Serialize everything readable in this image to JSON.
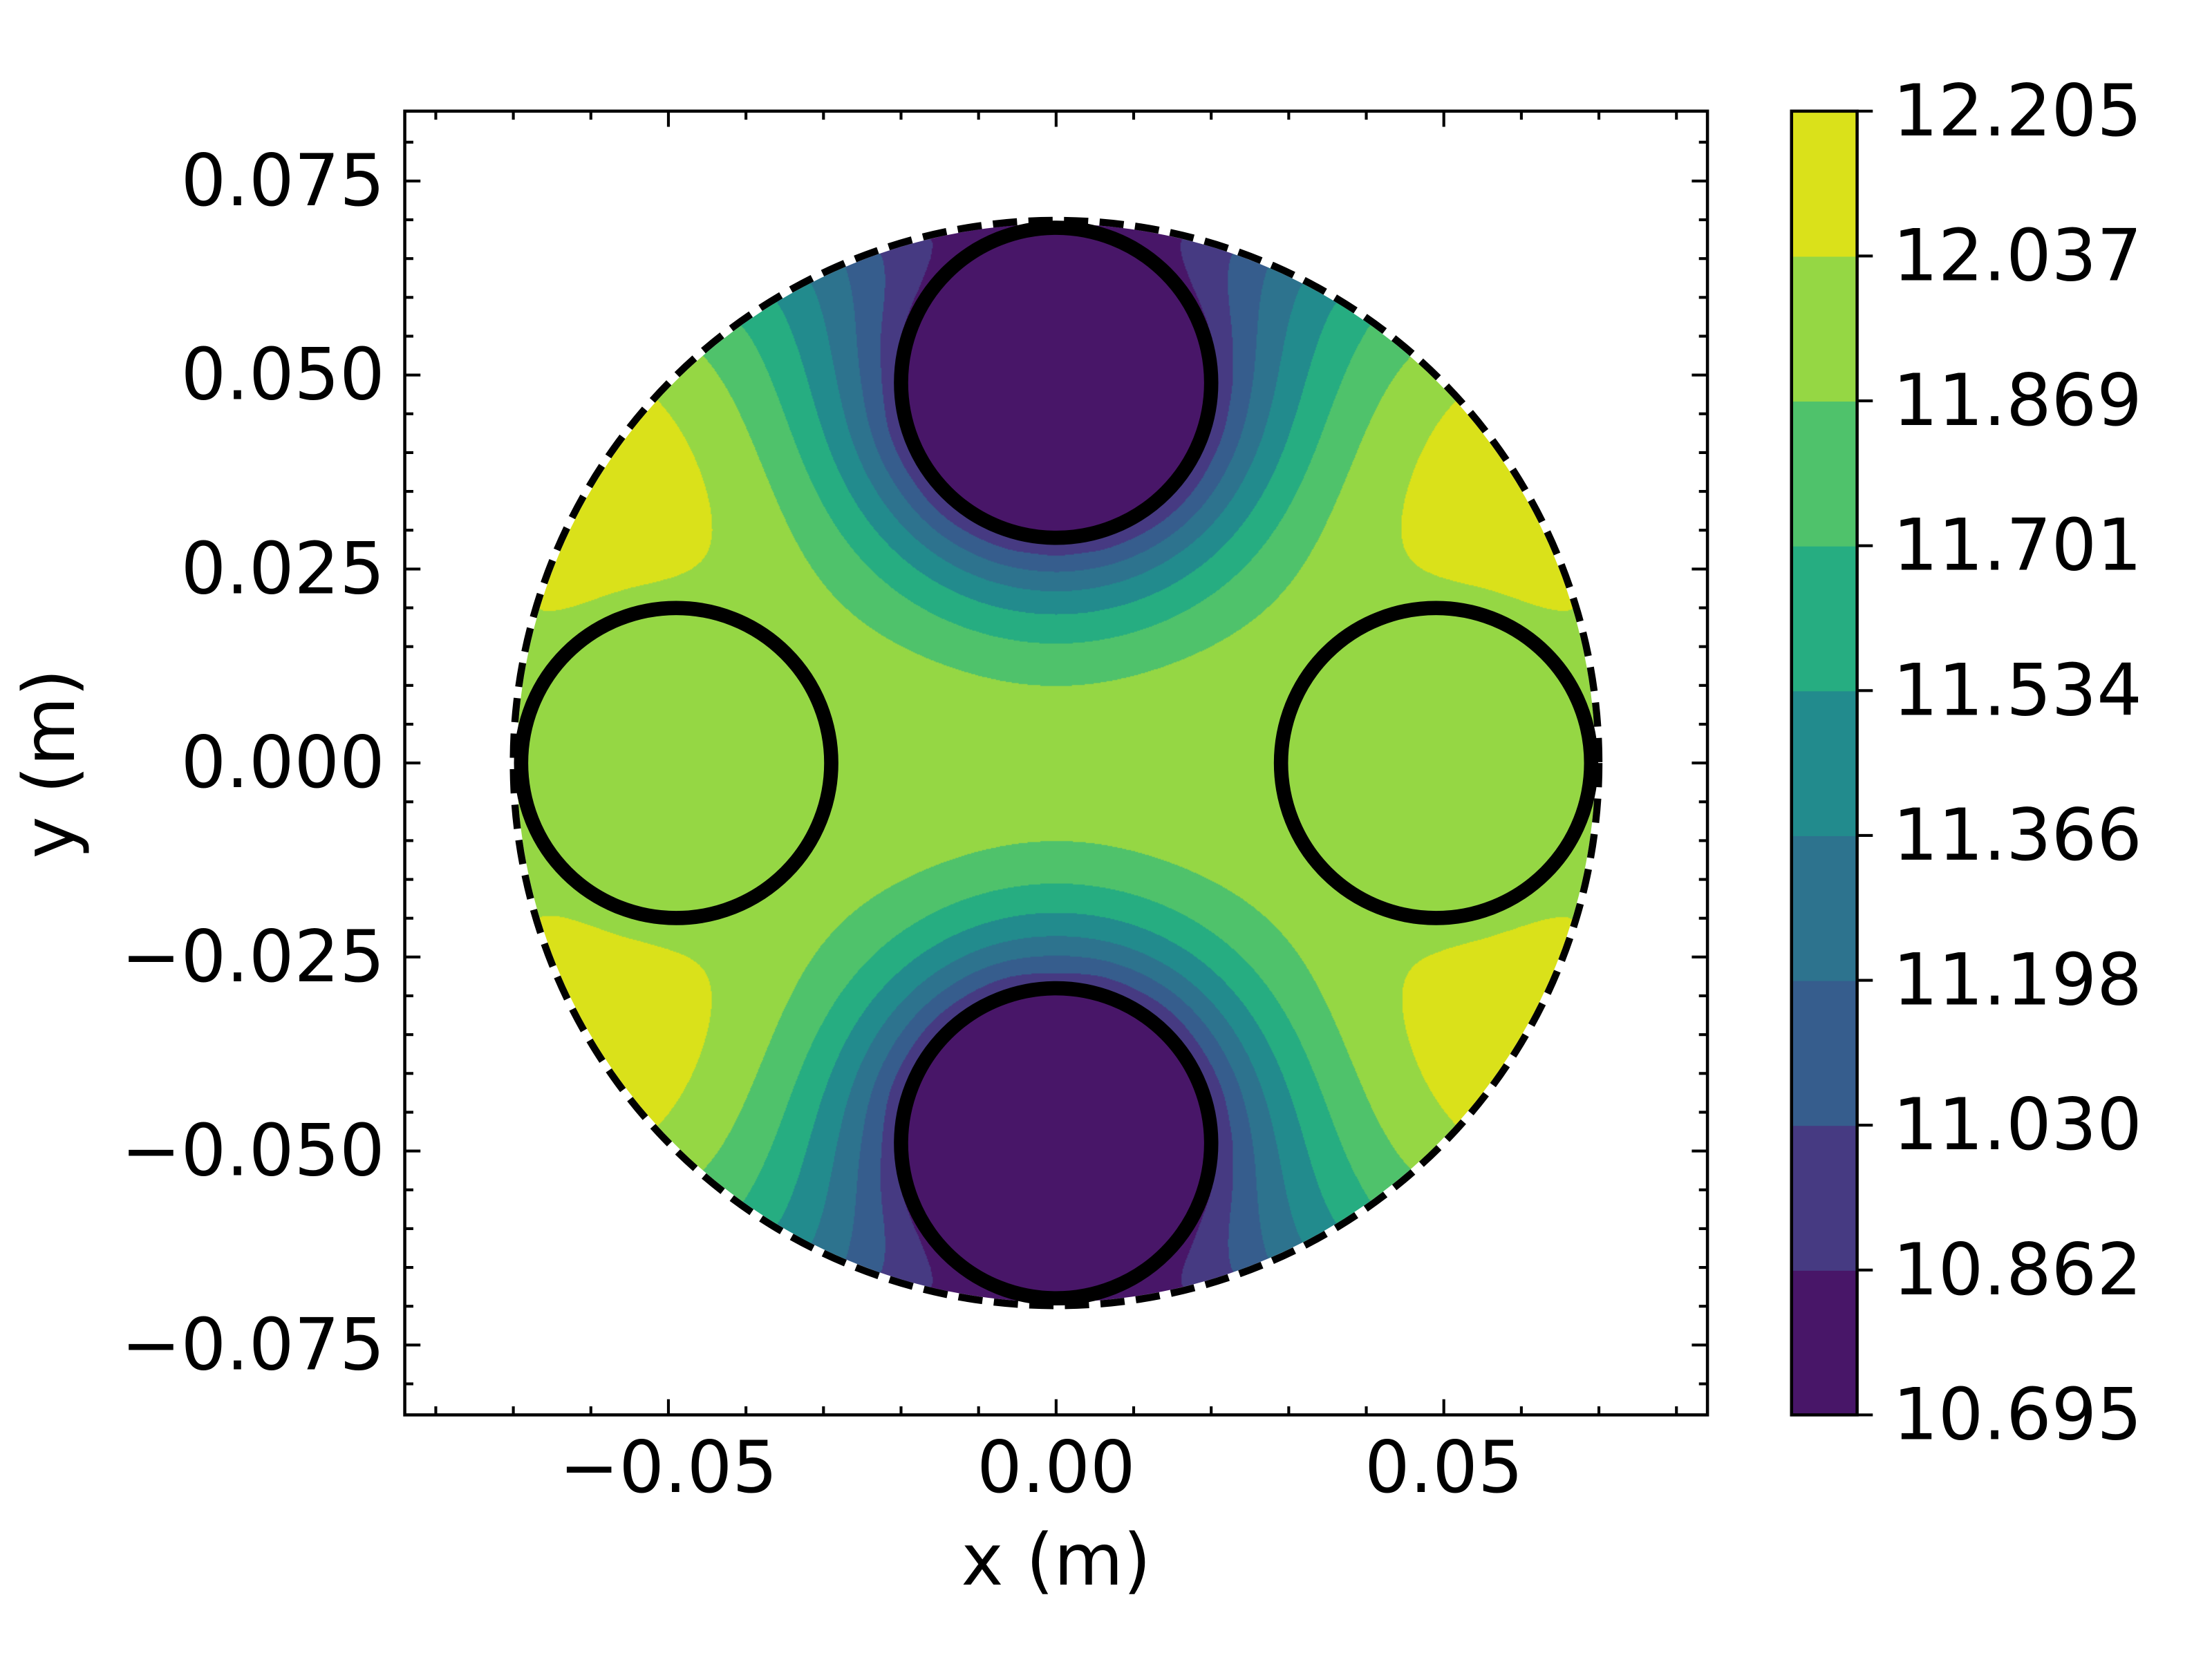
{
  "chart_data": {
    "type": "contourf",
    "xlabel": "x (m)",
    "ylabel": "y (m)",
    "xlim": [
      -0.084,
      0.084
    ],
    "ylim": [
      -0.084,
      0.084
    ],
    "xticks": [
      -0.05,
      0.0,
      0.05
    ],
    "xtick_labels": [
      "−0.05",
      "0.00",
      "0.05"
    ],
    "x_minor_step": 0.01,
    "yticks": [
      -0.075,
      -0.05,
      -0.025,
      0.0,
      0.025,
      0.05,
      0.075
    ],
    "ytick_labels": [
      "−0.075",
      "−0.050",
      "−0.025",
      "0.000",
      "0.025",
      "0.050",
      "0.075"
    ],
    "y_minor_step": 0.005,
    "tick_direction": "in",
    "colormap": "viridis",
    "levels": [
      10.695,
      10.862,
      11.03,
      11.198,
      11.366,
      11.534,
      11.701,
      11.869,
      12.037,
      12.205
    ],
    "colorbar_labels": [
      "10.695",
      "10.862",
      "11.030",
      "11.198",
      "11.366",
      "11.534",
      "11.701",
      "11.869",
      "12.037",
      "12.205"
    ],
    "band_colors": [
      "#481668",
      "#463a82",
      "#365d8d",
      "#2d738e",
      "#228b8d",
      "#26ad81",
      "#4fc26b",
      "#95d744",
      "#dae11a"
    ],
    "domain": {
      "center": [
        0,
        0
      ],
      "radius": 0.07,
      "style": "dashed"
    },
    "cylinders": [
      {
        "center": [
          0,
          0.049
        ],
        "radius": 0.02,
        "value": 10.78
      },
      {
        "center": [
          0,
          -0.049
        ],
        "radius": 0.02,
        "value": 10.78
      },
      {
        "center": [
          -0.049,
          0
        ],
        "radius": 0.02,
        "value": 11.95
      },
      {
        "center": [
          0.049,
          0
        ],
        "radius": 0.02,
        "value": 11.95
      }
    ],
    "field_max_near_edges": 12.12,
    "colorbar_position": "right"
  }
}
